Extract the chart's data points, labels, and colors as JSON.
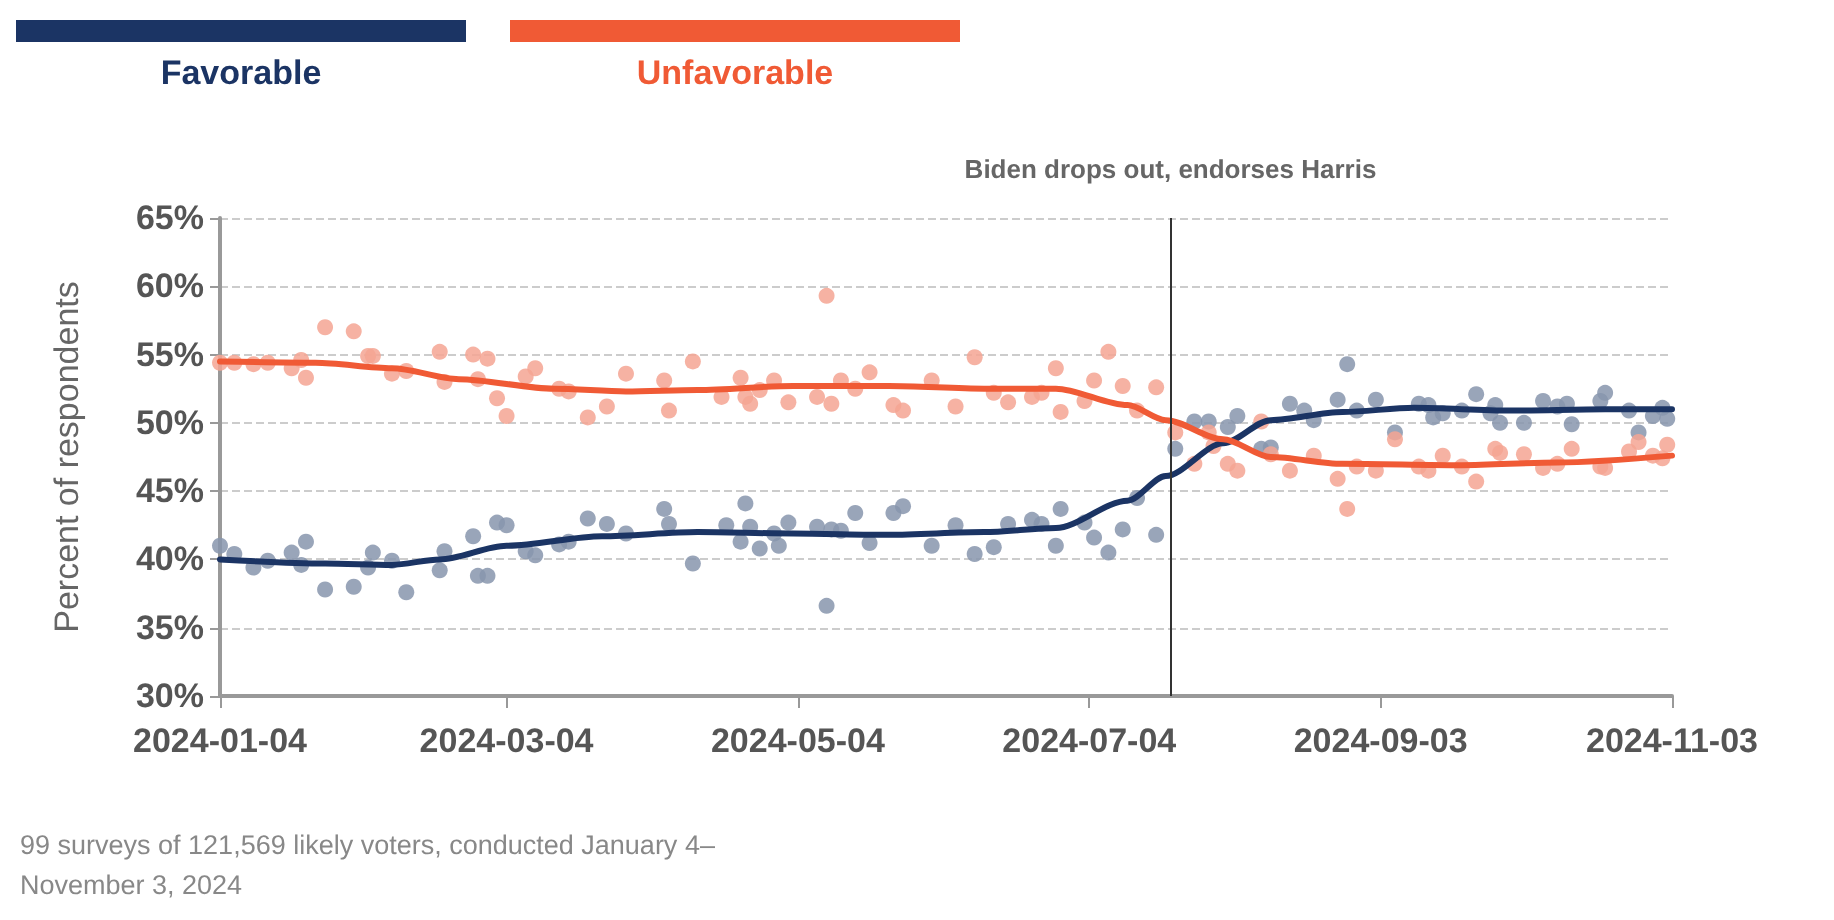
{
  "chart_data": {
    "type": "scatter",
    "ylabel": "Percent of respondents",
    "legend": "top left",
    "grid": "y",
    "ylim": [
      30,
      65
    ],
    "yticks": [
      {
        "value": 30,
        "label": "30%"
      },
      {
        "value": 35,
        "label": "35%"
      },
      {
        "value": 40,
        "label": "40%"
      },
      {
        "value": 45,
        "label": "45%"
      },
      {
        "value": 50,
        "label": "50%"
      },
      {
        "value": 55,
        "label": "55%"
      },
      {
        "value": 60,
        "label": "60%"
      },
      {
        "value": 65,
        "label": "65%"
      }
    ],
    "xlim": [
      "2024-01-04",
      "2024-11-03"
    ],
    "xticks": [
      "2024-01-04",
      "2024-03-04",
      "2024-05-04",
      "2024-07-04",
      "2024-09-03",
      "2024-11-03"
    ],
    "ref_lines": [
      {
        "axis": "x",
        "value": "2024-07-21",
        "label": "Biden drops out, endorses Harris",
        "color": "#333333"
      }
    ],
    "annotations": [
      "99 surveys of 121,569 likely voters, conducted January 4–November 3, 2024"
    ],
    "series": [
      {
        "marker": "circle",
        "color": "#8795ad",
        "x": [
          "2024-01-04",
          "2024-01-07",
          "2024-01-11",
          "2024-01-14",
          "2024-01-19",
          "2024-01-21",
          "2024-01-22",
          "2024-01-26",
          "2024-02-01",
          "2024-02-04",
          "2024-02-05",
          "2024-02-09",
          "2024-02-12",
          "2024-02-19",
          "2024-02-20",
          "2024-02-26",
          "2024-02-27",
          "2024-02-29",
          "2024-03-02",
          "2024-03-04",
          "2024-03-08",
          "2024-03-10",
          "2024-03-15",
          "2024-03-17",
          "2024-03-21",
          "2024-03-25",
          "2024-03-29",
          "2024-04-06",
          "2024-04-07",
          "2024-04-12",
          "2024-04-19",
          "2024-04-22",
          "2024-04-23",
          "2024-04-24",
          "2024-04-26",
          "2024-04-29",
          "2024-04-30",
          "2024-05-02",
          "2024-05-08",
          "2024-05-10",
          "2024-05-11",
          "2024-05-13",
          "2024-05-16",
          "2024-05-19",
          "2024-05-24",
          "2024-05-26",
          "2024-06-01",
          "2024-06-06",
          "2024-06-10",
          "2024-06-14",
          "2024-06-17",
          "2024-06-22",
          "2024-06-24",
          "2024-06-27",
          "2024-06-28",
          "2024-07-03",
          "2024-07-05",
          "2024-07-08",
          "2024-07-11",
          "2024-07-14",
          "2024-07-18",
          "2024-07-22",
          "2024-07-26",
          "2024-07-29",
          "2024-08-02",
          "2024-08-04",
          "2024-08-09",
          "2024-08-11",
          "2024-08-15",
          "2024-08-18",
          "2024-08-20",
          "2024-08-25",
          "2024-08-27",
          "2024-08-29",
          "2024-09-02",
          "2024-09-06",
          "2024-09-11",
          "2024-09-13",
          "2024-09-14",
          "2024-09-16",
          "2024-09-20",
          "2024-09-23",
          "2024-09-26",
          "2024-09-27",
          "2024-09-28",
          "2024-10-03",
          "2024-10-07",
          "2024-10-10",
          "2024-10-12",
          "2024-10-13",
          "2024-10-19",
          "2024-10-20",
          "2024-10-25",
          "2024-10-27",
          "2024-10-30",
          "2024-11-01",
          "2024-11-02"
        ],
        "values": [
          41.0,
          40.4,
          39.4,
          39.9,
          40.5,
          39.6,
          41.3,
          37.8,
          38.0,
          39.4,
          40.5,
          39.9,
          37.6,
          39.2,
          40.6,
          41.7,
          38.8,
          38.8,
          42.7,
          42.5,
          40.6,
          40.3,
          41.1,
          41.3,
          43.0,
          42.6,
          41.9,
          43.7,
          42.6,
          39.7,
          42.5,
          41.3,
          44.1,
          42.4,
          40.8,
          41.9,
          41.0,
          42.7,
          42.4,
          36.6,
          42.2,
          42.1,
          43.4,
          41.2,
          43.4,
          43.9,
          41.0,
          42.5,
          40.4,
          40.9,
          42.6,
          42.9,
          42.6,
          41.0,
          43.7,
          42.7,
          41.6,
          40.5,
          42.2,
          44.5,
          41.8,
          48.1,
          50.1,
          50.1,
          49.7,
          50.5,
          48.1,
          48.2,
          51.4,
          50.9,
          50.2,
          51.7,
          54.3,
          50.9,
          51.7,
          49.3,
          51.4,
          51.3,
          50.4,
          50.7,
          50.9,
          52.1,
          50.7,
          51.3,
          50.0,
          50.0,
          51.6,
          51.2,
          51.4,
          49.9,
          51.6,
          52.2,
          50.9,
          49.3,
          50.5,
          51.1,
          50.3
        ]
      },
      {
        "marker": "circle",
        "color": "#f5a493",
        "x": [
          "2024-01-04",
          "2024-01-07",
          "2024-01-11",
          "2024-01-14",
          "2024-01-19",
          "2024-01-21",
          "2024-01-22",
          "2024-01-26",
          "2024-02-01",
          "2024-02-04",
          "2024-02-05",
          "2024-02-09",
          "2024-02-12",
          "2024-02-19",
          "2024-02-20",
          "2024-02-26",
          "2024-02-27",
          "2024-02-29",
          "2024-03-02",
          "2024-03-04",
          "2024-03-08",
          "2024-03-10",
          "2024-03-15",
          "2024-03-17",
          "2024-03-21",
          "2024-03-25",
          "2024-03-29",
          "2024-04-06",
          "2024-04-07",
          "2024-04-12",
          "2024-04-18",
          "2024-04-22",
          "2024-04-23",
          "2024-04-24",
          "2024-04-26",
          "2024-04-29",
          "2024-05-02",
          "2024-05-08",
          "2024-05-10",
          "2024-05-11",
          "2024-05-13",
          "2024-05-16",
          "2024-05-19",
          "2024-05-24",
          "2024-05-26",
          "2024-06-01",
          "2024-06-06",
          "2024-06-10",
          "2024-06-14",
          "2024-06-17",
          "2024-06-22",
          "2024-06-24",
          "2024-06-27",
          "2024-06-28",
          "2024-07-03",
          "2024-07-05",
          "2024-07-08",
          "2024-07-11",
          "2024-07-14",
          "2024-07-18",
          "2024-07-22",
          "2024-07-26",
          "2024-07-29",
          "2024-07-30",
          "2024-08-02",
          "2024-08-04",
          "2024-08-09",
          "2024-08-11",
          "2024-08-15",
          "2024-08-20",
          "2024-08-25",
          "2024-08-27",
          "2024-08-29",
          "2024-09-02",
          "2024-09-06",
          "2024-09-11",
          "2024-09-13",
          "2024-09-16",
          "2024-09-20",
          "2024-09-23",
          "2024-09-27",
          "2024-09-28",
          "2024-10-03",
          "2024-10-07",
          "2024-10-10",
          "2024-10-13",
          "2024-10-19",
          "2024-10-20",
          "2024-10-25",
          "2024-10-27",
          "2024-10-30",
          "2024-11-01",
          "2024-11-02"
        ],
        "values": [
          54.4,
          54.4,
          54.3,
          54.4,
          54.0,
          54.6,
          53.3,
          57.0,
          56.7,
          54.9,
          54.9,
          53.6,
          53.8,
          55.2,
          53.0,
          55.0,
          53.2,
          54.7,
          51.8,
          50.5,
          53.4,
          54.0,
          52.5,
          52.3,
          50.4,
          51.2,
          53.6,
          53.1,
          50.9,
          54.5,
          51.9,
          53.3,
          51.9,
          51.4,
          52.4,
          53.1,
          51.5,
          51.9,
          59.3,
          51.4,
          53.1,
          52.5,
          53.7,
          51.3,
          50.9,
          53.1,
          51.2,
          54.8,
          52.2,
          51.5,
          51.9,
          52.2,
          54.0,
          50.8,
          51.6,
          53.1,
          55.2,
          52.7,
          50.9,
          52.6,
          49.3,
          47.0,
          49.3,
          48.3,
          47.0,
          46.5,
          50.1,
          47.7,
          46.5,
          47.6,
          45.9,
          43.7,
          46.8,
          46.5,
          48.8,
          46.8,
          46.5,
          47.6,
          46.8,
          45.7,
          48.1,
          47.8,
          47.7,
          46.7,
          47.0,
          48.1,
          46.8,
          46.7,
          47.9,
          48.6,
          47.6,
          47.4,
          48.4
        ]
      },
      {
        "type": "line",
        "name": "Favorable",
        "marker": "none",
        "line_style": "solid",
        "color": "#1b3464",
        "x": [
          "2024-01-04",
          "2024-01-26",
          "2024-02-09",
          "2024-02-19",
          "2024-03-04",
          "2024-03-24",
          "2024-04-13",
          "2024-05-03",
          "2024-05-23",
          "2024-06-12",
          "2024-06-27",
          "2024-07-12",
          "2024-07-20",
          "2024-08-01",
          "2024-08-11",
          "2024-08-26",
          "2024-09-10",
          "2024-09-30",
          "2024-10-20",
          "2024-11-03"
        ],
        "values": [
          40.0,
          39.7,
          39.6,
          40.0,
          41.0,
          41.7,
          42.0,
          41.9,
          41.8,
          42.0,
          42.3,
          44.3,
          46.1,
          48.5,
          50.2,
          50.8,
          51.1,
          50.9,
          51.0,
          51.0
        ]
      },
      {
        "type": "line",
        "name": "Unfavorable",
        "marker": "none",
        "line_style": "solid",
        "color": "#f05a35",
        "x": [
          "2024-01-04",
          "2024-01-24",
          "2024-02-09",
          "2024-02-23",
          "2024-03-14",
          "2024-03-29",
          "2024-04-13",
          "2024-05-03",
          "2024-05-23",
          "2024-06-12",
          "2024-06-27",
          "2024-07-12",
          "2024-07-20",
          "2024-08-01",
          "2024-08-11",
          "2024-08-26",
          "2024-09-20",
          "2024-10-10",
          "2024-11-03"
        ],
        "values": [
          54.5,
          54.4,
          54.0,
          53.2,
          52.5,
          52.3,
          52.4,
          52.7,
          52.7,
          52.5,
          52.5,
          51.3,
          50.2,
          48.8,
          47.5,
          47.0,
          46.9,
          47.1,
          47.6
        ]
      }
    ]
  }
}
